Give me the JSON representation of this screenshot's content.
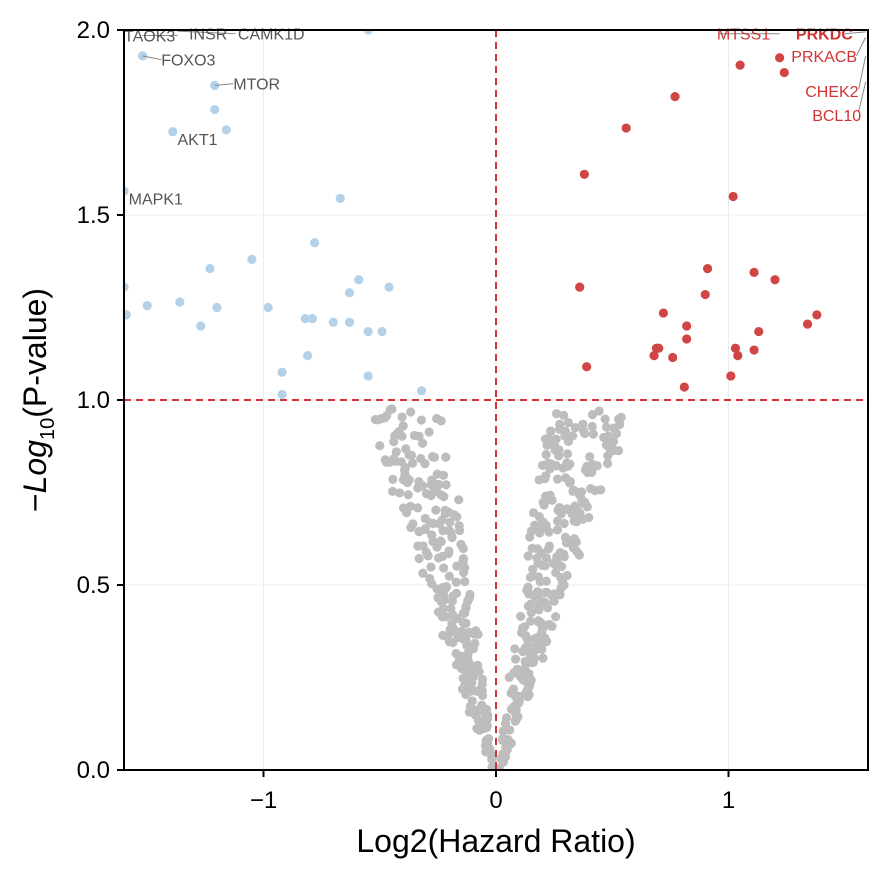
{
  "chart_data": {
    "type": "scatter",
    "xlabel": "Log2(Hazard Ratio)",
    "ylabel": {
      "prefix": "−",
      "main": "Log",
      "sub": "10",
      "suffix": "(P-value)"
    },
    "xlim": [
      -1.6,
      1.6
    ],
    "ylim": [
      0,
      2.0
    ],
    "x_ticks": [
      -1,
      0,
      1
    ],
    "x_tick_labels": [
      "−1",
      "0",
      "1"
    ],
    "y_ticks": [
      0.0,
      0.5,
      1.0,
      1.5,
      2.0
    ],
    "y_tick_labels": [
      "0.0",
      "0.5",
      "1.0",
      "1.5",
      "2.0"
    ],
    "grid": true,
    "thresholds": {
      "x": 0,
      "y": 1.0,
      "color": "#d03434"
    },
    "colors": {
      "up": "#d24545",
      "down": "#b3d1e8",
      "ns": "#bdbdbd",
      "label_down": "#555555",
      "label_up": "#d03434",
      "leader": "#888888"
    },
    "series": [
      {
        "key": "up",
        "points": [
          [
            1.05,
            1.905
          ],
          [
            1.22,
            1.925
          ],
          [
            1.24,
            1.885
          ],
          [
            0.77,
            1.82
          ],
          [
            0.56,
            1.735
          ],
          [
            0.38,
            1.61
          ],
          [
            1.02,
            1.55
          ],
          [
            0.91,
            1.355
          ],
          [
            1.11,
            1.345
          ],
          [
            1.2,
            1.325
          ],
          [
            0.36,
            1.305
          ],
          [
            0.9,
            1.285
          ],
          [
            1.38,
            1.23
          ],
          [
            0.72,
            1.235
          ],
          [
            1.34,
            1.205
          ],
          [
            0.82,
            1.2
          ],
          [
            1.13,
            1.185
          ],
          [
            0.82,
            1.165
          ],
          [
            0.7,
            1.14
          ],
          [
            0.69,
            1.14
          ],
          [
            1.03,
            1.14
          ],
          [
            1.04,
            1.12
          ],
          [
            1.11,
            1.135
          ],
          [
            0.68,
            1.12
          ],
          [
            0.76,
            1.115
          ],
          [
            0.39,
            1.09
          ],
          [
            1.01,
            1.065
          ],
          [
            0.81,
            1.035
          ]
        ]
      },
      {
        "key": "down",
        "points": [
          [
            -0.55,
            2.0
          ],
          [
            -1.52,
            1.93
          ],
          [
            -1.21,
            1.85
          ],
          [
            -1.21,
            1.785
          ],
          [
            -1.16,
            1.73
          ],
          [
            -1.39,
            1.725
          ],
          [
            -1.6,
            1.565
          ],
          [
            -0.67,
            1.545
          ],
          [
            -0.78,
            1.425
          ],
          [
            -1.05,
            1.38
          ],
          [
            -1.23,
            1.355
          ],
          [
            -0.59,
            1.325
          ],
          [
            -1.6,
            1.305
          ],
          [
            -0.46,
            1.305
          ],
          [
            -0.63,
            1.29
          ],
          [
            -1.36,
            1.265
          ],
          [
            -1.5,
            1.255
          ],
          [
            -1.2,
            1.25
          ],
          [
            -0.98,
            1.25
          ],
          [
            -1.59,
            1.23
          ],
          [
            -0.82,
            1.22
          ],
          [
            -0.79,
            1.22
          ],
          [
            -0.7,
            1.21
          ],
          [
            -0.63,
            1.21
          ],
          [
            -1.27,
            1.2
          ],
          [
            -0.55,
            1.185
          ],
          [
            -0.49,
            1.185
          ],
          [
            -0.81,
            1.12
          ],
          [
            -0.92,
            1.075
          ],
          [
            -0.55,
            1.065
          ],
          [
            -0.32,
            1.025
          ],
          [
            -0.92,
            1.015
          ]
        ]
      }
    ],
    "labels": [
      {
        "text": "TAOK3",
        "group": "down",
        "x": -1.6,
        "y": 1.985,
        "bold": false,
        "leader": [
          [
            -1.37,
            1.985
          ],
          [
            -1.52,
            1.985
          ]
        ]
      },
      {
        "text": "INSR",
        "group": "down",
        "x": -1.32,
        "y": 1.99,
        "bold": false,
        "leader": null
      },
      {
        "text": "CAMK1D",
        "group": "down",
        "x": -1.11,
        "y": 1.99,
        "bold": false,
        "leader": [
          [
            -1.37,
            1.997
          ],
          [
            -1.12,
            1.99
          ]
        ]
      },
      {
        "text": "FOXO3",
        "group": "down",
        "x": -1.44,
        "y": 1.92,
        "bold": false,
        "leader": [
          [
            -1.52,
            1.93
          ],
          [
            -1.44,
            1.92
          ]
        ]
      },
      {
        "text": "MTOR",
        "group": "down",
        "x": -1.13,
        "y": 1.855,
        "bold": false,
        "leader": [
          [
            -1.21,
            1.85
          ],
          [
            -1.13,
            1.855
          ]
        ]
      },
      {
        "text": "AKT1",
        "group": "down",
        "x": -1.37,
        "y": 1.705,
        "bold": false,
        "leader": null
      },
      {
        "text": "MAPK1",
        "group": "down",
        "x": -1.58,
        "y": 1.545,
        "bold": false,
        "leader": null
      },
      {
        "text": "MTSS1",
        "group": "up",
        "x": 0.95,
        "y": 1.99,
        "bold": false,
        "leader": [
          [
            1.22,
            1.99
          ],
          [
            0.96,
            1.99
          ]
        ]
      },
      {
        "text": "PRKDC",
        "group": "up",
        "x": 1.29,
        "y": 1.99,
        "bold": true,
        "leader": [
          [
            1.59,
            1.995
          ],
          [
            1.5,
            1.99
          ]
        ]
      },
      {
        "text": "PRKACB",
        "group": "up",
        "x": 1.27,
        "y": 1.93,
        "bold": false,
        "leader": [
          [
            1.59,
            1.98
          ],
          [
            1.55,
            1.93
          ]
        ]
      },
      {
        "text": "CHEK2",
        "group": "up",
        "x": 1.33,
        "y": 1.835,
        "bold": false,
        "leader": [
          [
            1.59,
            1.93
          ],
          [
            1.56,
            1.84
          ]
        ]
      },
      {
        "text": "BCL10",
        "group": "up",
        "x": 1.36,
        "y": 1.77,
        "bold": false,
        "leader": [
          [
            1.59,
            1.86
          ],
          [
            1.56,
            1.78
          ]
        ]
      }
    ],
    "ns_curve_note": "non-significant points are drawn procedurally along the V-shaped envelope"
  }
}
